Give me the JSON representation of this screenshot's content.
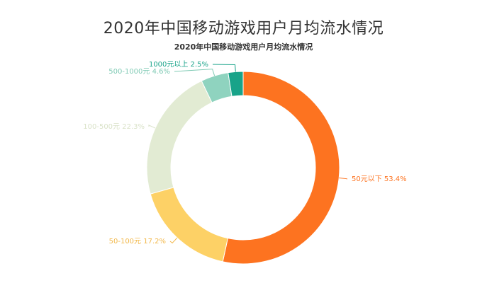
{
  "title": "2020年中国移动游戏用户月均流水情况",
  "chart_data": {
    "type": "pie",
    "title": "2020年中国移动游戏用户月均流水情况",
    "categories": [
      "50元以下",
      "50-100元",
      "100-500元",
      "500-1000元",
      "1000元以上"
    ],
    "values": [
      53.4,
      17.2,
      22.3,
      4.6,
      2.5
    ],
    "unit": "%",
    "colors": [
      "#fd7320",
      "#fdd166",
      "#e2ebd3",
      "#8fd3bf",
      "#18a389"
    ],
    "label_colors": [
      "#fd7320",
      "#f2b84a",
      "#d9e2c8",
      "#7fcab4",
      "#18a389"
    ],
    "labels": [
      "50元以下 53.4%",
      "50-100元 17.2%",
      "100-500元 22.3%",
      "500-1000元 4.6%",
      "1000元以上 2.5%"
    ],
    "donut": true,
    "legend": "none"
  }
}
